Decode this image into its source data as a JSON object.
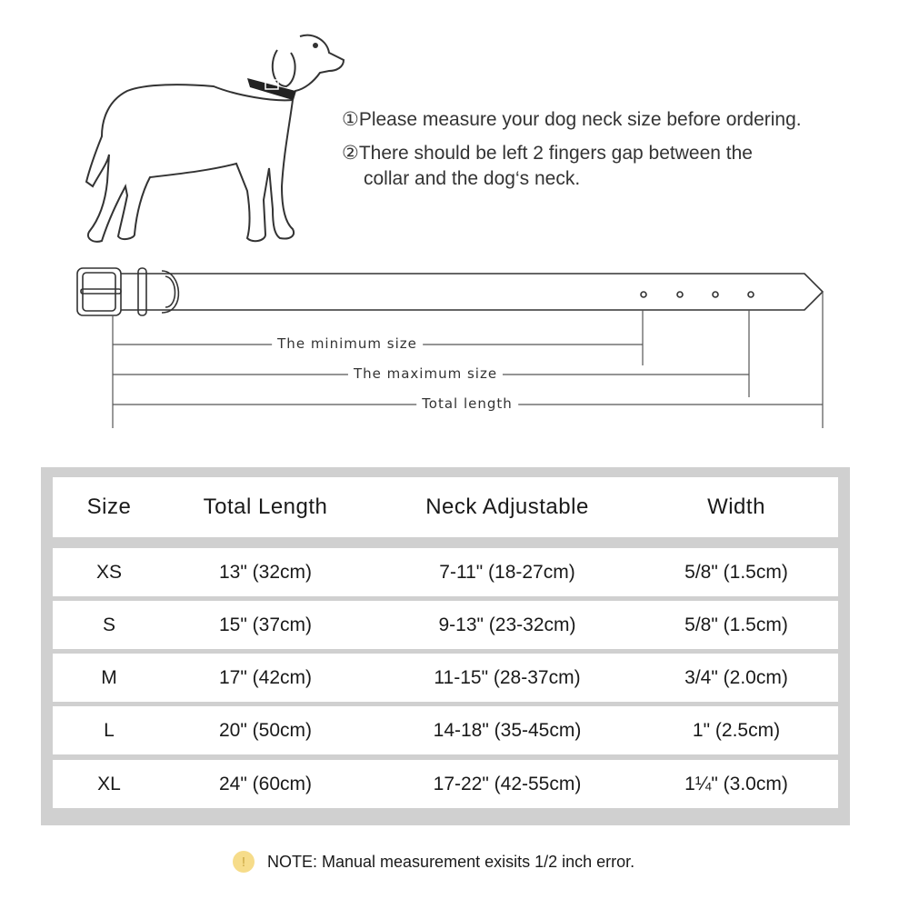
{
  "instructions": {
    "step1": "①Please measure your dog neck size before ordering.",
    "step2_line1": "②There should be left 2 fingers gap between the",
    "step2_line2": "collar and the dog‘s neck."
  },
  "diagram": {
    "min_label": "The minimum size",
    "max_label": "The maximum size",
    "total_label": "Total length"
  },
  "table": {
    "headers": [
      "Size",
      "Total Length",
      "Neck Adjustable",
      "Width"
    ],
    "rows": [
      [
        "XS",
        "13\" (32cm)",
        "7-11\" (18-27cm)",
        "5/8\" (1.5cm)"
      ],
      [
        "S",
        "15\" (37cm)",
        "9-13\" (23-32cm)",
        "5/8\" (1.5cm)"
      ],
      [
        "M",
        "17\" (42cm)",
        "11-15\" (28-37cm)",
        "3/4\" (2.0cm)"
      ],
      [
        "L",
        "20\" (50cm)",
        "14-18\" (35-45cm)",
        "1\" (2.5cm)"
      ],
      [
        "XL",
        "24\" (60cm)",
        "17-22\" (42-55cm)",
        "1¼\" (3.0cm)"
      ]
    ]
  },
  "note": {
    "icon": "exclamation-icon",
    "text": "NOTE: Manual measurement exisits 1/2  inch error.",
    "icon_color": "#f6dc8a"
  }
}
